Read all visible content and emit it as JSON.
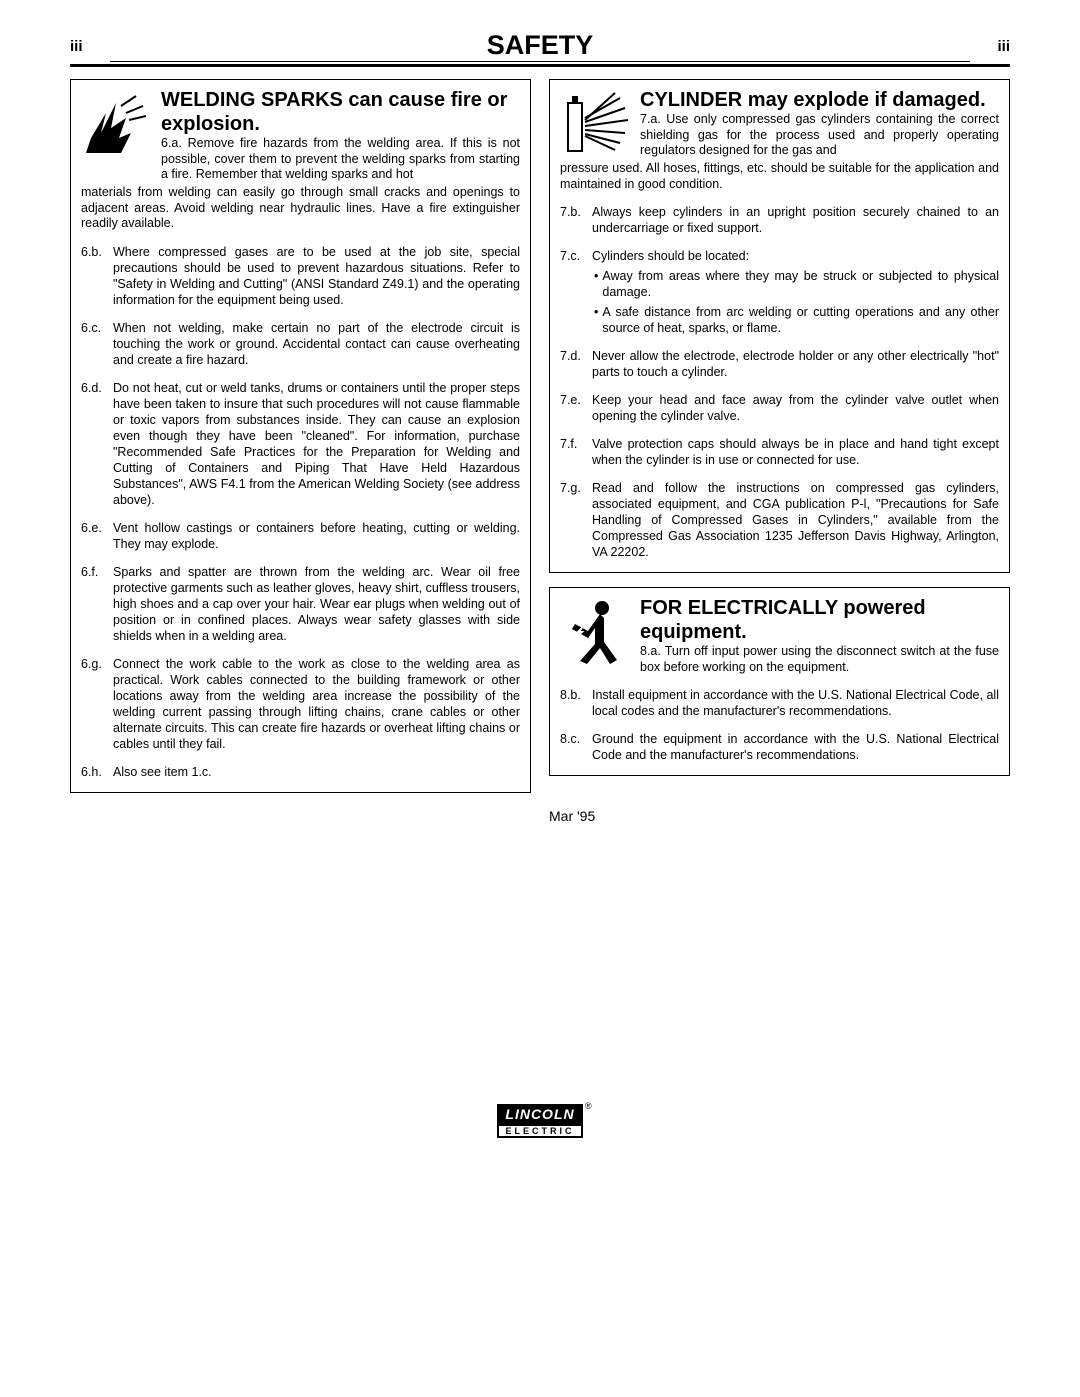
{
  "header": {
    "page_num_left": "iii",
    "title": "SAFETY",
    "page_num_right": "iii"
  },
  "left_column": {
    "section1": {
      "title": "WELDING SPARKS can cause fire or explosion.",
      "first_num": "6.a.",
      "first_text": "Remove fire hazards from the welding area. If this is not possible, cover them to prevent the welding sparks from starting a fire. Remember that welding sparks and hot",
      "first_continue": "materials from welding can easily go through small cracks and openings to adjacent areas. Avoid welding near hydraulic lines. Have a fire extinguisher readily available.",
      "items": [
        {
          "num": "6.b.",
          "text": "Where compressed gases are to be used at the job site, special precautions should be used to prevent hazardous situations. Refer to \"Safety in Welding and Cutting\" (ANSI Standard Z49.1) and the operating information for the equipment being used."
        },
        {
          "num": "6.c.",
          "text": "When not welding, make certain no part of the electrode circuit is touching the work or ground. Accidental contact can cause overheating and create a fire hazard."
        },
        {
          "num": "6.d.",
          "text": "Do not heat, cut or weld tanks, drums or containers until the proper steps have been taken to insure that such procedures will not cause flammable or toxic vapors from substances inside. They can cause an explosion even though they have been \"cleaned\". For information, purchase \"Recommended Safe Practices for the Preparation for Welding and Cutting of Containers and Piping That Have Held Hazardous Substances\", AWS F4.1 from the American Welding Society (see address above)."
        },
        {
          "num": "6.e.",
          "text": "Vent hollow castings or containers before heating, cutting or welding. They may explode."
        },
        {
          "num": "6.f.",
          "text": "Sparks and spatter are thrown from the welding arc. Wear oil free protective garments such as leather gloves, heavy shirt, cuffless trousers, high shoes and a cap over your hair. Wear ear plugs when welding out of position or in confined places. Always wear safety glasses with side shields when in a welding area."
        },
        {
          "num": "6.g.",
          "text": "Connect the work cable to the work as close to the welding area as practical. Work cables connected to the building framework or other locations away from the welding area increase the possibility of the welding current passing through lifting chains, crane cables or other alternate circuits. This can create fire hazards or overheat lifting chains or cables until they fail."
        },
        {
          "num": "6.h.",
          "text": "Also see item 1.c."
        }
      ]
    }
  },
  "right_column": {
    "section2": {
      "title": "CYLINDER may explode if damaged.",
      "first_num": "7.a.",
      "first_text": "Use only compressed gas cylinders containing the correct shielding gas for the process used and properly operating regulators designed for the gas and",
      "first_continue": "pressure used. All hoses, fittings, etc. should be suitable for the application and maintained in good condition.",
      "items": [
        {
          "num": "7.b.",
          "text": "Always keep cylinders in an upright position securely chained to an undercarriage or fixed support."
        },
        {
          "num": "7.c.",
          "text": "Cylinders should be located:",
          "bullets": [
            "Away from areas where they may be struck or subjected to physical damage.",
            "A safe distance from arc welding or cutting operations and any other source of heat, sparks, or flame."
          ]
        },
        {
          "num": "7.d.",
          "text": "Never allow the electrode, electrode holder or any other electrically \"hot\" parts to touch a cylinder."
        },
        {
          "num": "7.e.",
          "text": "Keep your head and face away from the cylinder valve outlet when opening the cylinder valve."
        },
        {
          "num": "7.f.",
          "text": "Valve protection caps should always be in place and hand tight except when the cylinder is in use or connected for use."
        },
        {
          "num": "7.g.",
          "text": "Read and follow the instructions on compressed gas cylinders, associated equipment, and CGA publication P-l, \"Precautions for Safe Handling of Compressed Gases in Cylinders,\" available from the Compressed Gas Association 1235 Jefferson Davis Highway, Arlington, VA 22202."
        }
      ]
    },
    "section3": {
      "title": "FOR ELECTRICALLY powered equipment.",
      "first_num": "8.a.",
      "first_text": "Turn off input power using the disconnect switch at the fuse box before working on the equipment.",
      "items": [
        {
          "num": "8.b.",
          "text": "Install equipment in accordance with the U.S. National Electrical Code, all local codes and the manufacturer's recommendations."
        },
        {
          "num": "8.c.",
          "text": "Ground the equipment in accordance with the U.S. National Electrical Code and the manufacturer's recommendations."
        }
      ]
    },
    "date": "Mar '95"
  },
  "footer": {
    "logo_top": "LINCOLN",
    "logo_bottom": "ELECTRIC",
    "logo_r": "®"
  }
}
